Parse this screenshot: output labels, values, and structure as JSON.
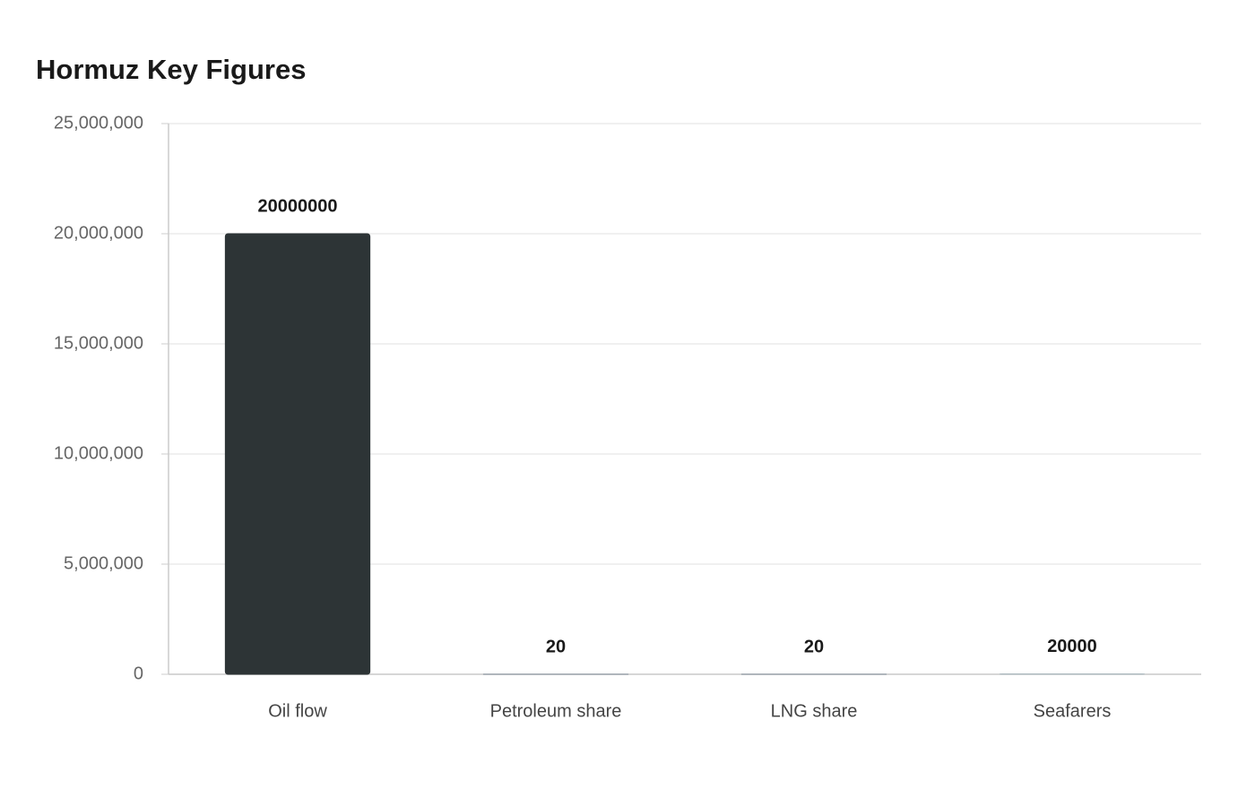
{
  "chart_data": {
    "type": "bar",
    "title": "Hormuz Key Figures",
    "categories": [
      "Oil flow",
      "Petroleum share",
      "LNG share",
      "Seafarers"
    ],
    "values": [
      20000000,
      20,
      20,
      20000
    ],
    "colors": [
      "#2d3436",
      "#7f8c99",
      "#7f8c99",
      "#b2bec3"
    ],
    "ylim": [
      0,
      25000000
    ],
    "yticks": [
      0,
      {
        "value": 5000000,
        "label": "5,000,000"
      },
      {
        "value": 10000000,
        "label": "10,000,000"
      },
      {
        "value": 15000000,
        "label": "15,000,000"
      },
      {
        "value": 20000000,
        "label": "20,000,000"
      },
      {
        "value": 25000000,
        "label": "25,000,000"
      }
    ],
    "grid": true
  }
}
